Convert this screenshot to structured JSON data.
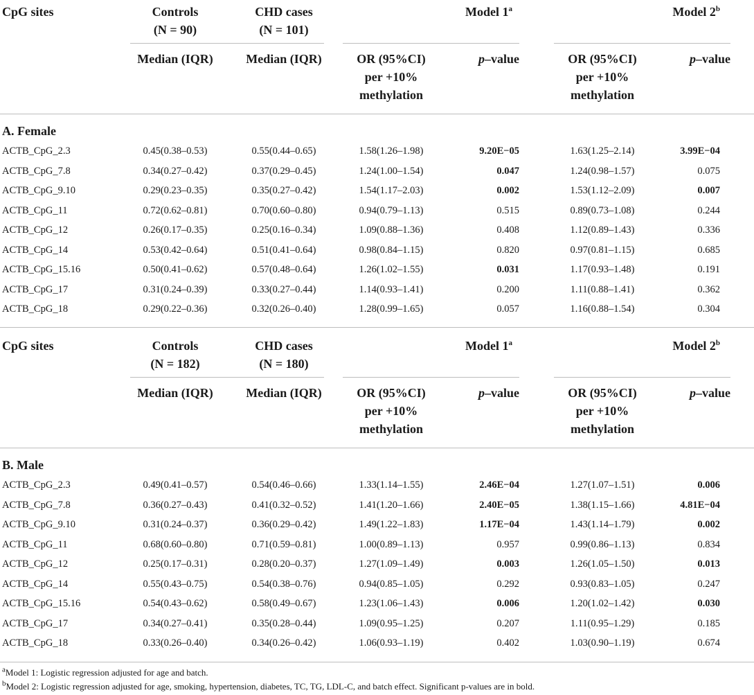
{
  "header": {
    "cpg": "CpG sites",
    "controls": "Controls",
    "cases": "CHD cases",
    "model1": "Model 1",
    "model1_sup": "a",
    "model2": "Model 2",
    "model2_sup": "b",
    "median": "Median (IQR)",
    "or_line1": "OR (95%CI)",
    "or_line2": "per +10%",
    "or_line3": "methylation",
    "p_italic": "p",
    "p_rest": "–value"
  },
  "female": {
    "title": "A. Female",
    "controls_n": "(N = 90)",
    "cases_n": "(N = 101)",
    "rows": [
      {
        "site": "ACTB_CpG_2.3",
        "ctrl": "0.45(0.38–0.53)",
        "case": "0.55(0.44–0.65)",
        "or1": "1.58(1.26–1.98)",
        "p1": "9.20E−05",
        "p1b": true,
        "or2": "1.63(1.25–2.14)",
        "p2": "3.99E−04",
        "p2b": true
      },
      {
        "site": "ACTB_CpG_7.8",
        "ctrl": "0.34(0.27–0.42)",
        "case": "0.37(0.29–0.45)",
        "or1": "1.24(1.00–1.54)",
        "p1": "0.047",
        "p1b": true,
        "or2": "1.24(0.98–1.57)",
        "p2": "0.075",
        "p2b": false
      },
      {
        "site": "ACTB_CpG_9.10",
        "ctrl": "0.29(0.23–0.35)",
        "case": "0.35(0.27–0.42)",
        "or1": "1.54(1.17–2.03)",
        "p1": "0.002",
        "p1b": true,
        "or2": "1.53(1.12–2.09)",
        "p2": "0.007",
        "p2b": true
      },
      {
        "site": "ACTB_CpG_11",
        "ctrl": "0.72(0.62–0.81)",
        "case": "0.70(0.60–0.80)",
        "or1": "0.94(0.79–1.13)",
        "p1": "0.515",
        "p1b": false,
        "or2": "0.89(0.73–1.08)",
        "p2": "0.244",
        "p2b": false
      },
      {
        "site": "ACTB_CpG_12",
        "ctrl": "0.26(0.17–0.35)",
        "case": "0.25(0.16–0.34)",
        "or1": "1.09(0.88–1.36)",
        "p1": "0.408",
        "p1b": false,
        "or2": "1.12(0.89–1.43)",
        "p2": "0.336",
        "p2b": false
      },
      {
        "site": "ACTB_CpG_14",
        "ctrl": "0.53(0.42–0.64)",
        "case": "0.51(0.41–0.64)",
        "or1": "0.98(0.84–1.15)",
        "p1": "0.820",
        "p1b": false,
        "or2": "0.97(0.81–1.15)",
        "p2": "0.685",
        "p2b": false
      },
      {
        "site": "ACTB_CpG_15.16",
        "ctrl": "0.50(0.41–0.62)",
        "case": "0.57(0.48–0.64)",
        "or1": "1.26(1.02–1.55)",
        "p1": "0.031",
        "p1b": true,
        "or2": "1.17(0.93–1.48)",
        "p2": "0.191",
        "p2b": false
      },
      {
        "site": "ACTB_CpG_17",
        "ctrl": "0.31(0.24–0.39)",
        "case": "0.33(0.27–0.44)",
        "or1": "1.14(0.93–1.41)",
        "p1": "0.200",
        "p1b": false,
        "or2": "1.11(0.88–1.41)",
        "p2": "0.362",
        "p2b": false
      },
      {
        "site": "ACTB_CpG_18",
        "ctrl": "0.29(0.22–0.36)",
        "case": "0.32(0.26–0.40)",
        "or1": "1.28(0.99–1.65)",
        "p1": "0.057",
        "p1b": false,
        "or2": "1.16(0.88–1.54)",
        "p2": "0.304",
        "p2b": false
      }
    ]
  },
  "male": {
    "title": "B. Male",
    "controls_n": "(N = 182)",
    "cases_n": "(N = 180)",
    "rows": [
      {
        "site": "ACTB_CpG_2.3",
        "ctrl": "0.49(0.41–0.57)",
        "case": "0.54(0.46–0.66)",
        "or1": "1.33(1.14–1.55)",
        "p1": "2.46E−04",
        "p1b": true,
        "or2": "1.27(1.07–1.51)",
        "p2": "0.006",
        "p2b": true
      },
      {
        "site": "ACTB_CpG_7.8",
        "ctrl": "0.36(0.27–0.43)",
        "case": "0.41(0.32–0.52)",
        "or1": "1.41(1.20–1.66)",
        "p1": "2.40E−05",
        "p1b": true,
        "or2": "1.38(1.15–1.66)",
        "p2": "4.81E−04",
        "p2b": true
      },
      {
        "site": "ACTB_CpG_9.10",
        "ctrl": "0.31(0.24–0.37)",
        "case": "0.36(0.29–0.42)",
        "or1": "1.49(1.22–1.83)",
        "p1": "1.17E−04",
        "p1b": true,
        "or2": "1.43(1.14–1.79)",
        "p2": "0.002",
        "p2b": true
      },
      {
        "site": "ACTB_CpG_11",
        "ctrl": "0.68(0.60–0.80)",
        "case": "0.71(0.59–0.81)",
        "or1": "1.00(0.89–1.13)",
        "p1": "0.957",
        "p1b": false,
        "or2": "0.99(0.86–1.13)",
        "p2": "0.834",
        "p2b": false
      },
      {
        "site": "ACTB_CpG_12",
        "ctrl": "0.25(0.17–0.31)",
        "case": "0.28(0.20–0.37)",
        "or1": "1.27(1.09–1.49)",
        "p1": "0.003",
        "p1b": true,
        "or2": "1.26(1.05–1.50)",
        "p2": "0.013",
        "p2b": true
      },
      {
        "site": "ACTB_CpG_14",
        "ctrl": "0.55(0.43–0.75)",
        "case": "0.54(0.38–0.76)",
        "or1": "0.94(0.85–1.05)",
        "p1": "0.292",
        "p1b": false,
        "or2": "0.93(0.83–1.05)",
        "p2": "0.247",
        "p2b": false
      },
      {
        "site": "ACTB_CpG_15.16",
        "ctrl": "0.54(0.43–0.62)",
        "case": "0.58(0.49–0.67)",
        "or1": "1.23(1.06–1.43)",
        "p1": "0.006",
        "p1b": true,
        "or2": "1.20(1.02–1.42)",
        "p2": "0.030",
        "p2b": true
      },
      {
        "site": "ACTB_CpG_17",
        "ctrl": "0.34(0.27–0.41)",
        "case": "0.35(0.28–0.44)",
        "or1": "1.09(0.95–1.25)",
        "p1": "0.207",
        "p1b": false,
        "or2": "1.11(0.95–1.29)",
        "p2": "0.185",
        "p2b": false
      },
      {
        "site": "ACTB_CpG_18",
        "ctrl": "0.33(0.26–0.40)",
        "case": "0.34(0.26–0.42)",
        "or1": "1.06(0.93–1.19)",
        "p1": "0.402",
        "p1b": false,
        "or2": "1.03(0.90–1.19)",
        "p2": "0.674",
        "p2b": false
      }
    ]
  },
  "footnotes": {
    "a_mark": "a",
    "a_text": "Model 1: Logistic regression adjusted for age and batch.",
    "b_mark": "b",
    "b_text": "Model 2: Logistic regression adjusted for age, smoking, hypertension, diabetes, TC, TG, LDL-C, and batch effect. Significant p-values are in bold."
  }
}
